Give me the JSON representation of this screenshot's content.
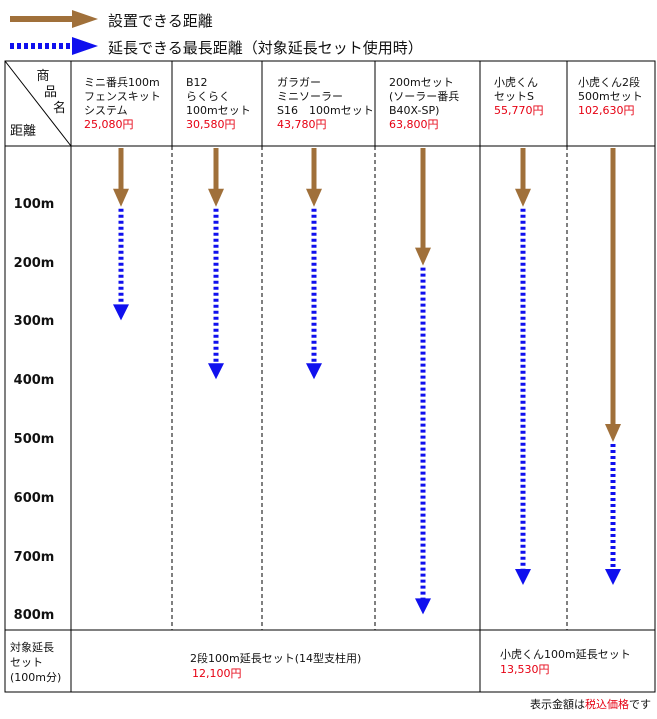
{
  "legend": {
    "install": {
      "label": "設置できる距離",
      "color": "#a0703a"
    },
    "extend": {
      "label": "延長できる最長距離（対象延長セット使用時）",
      "color": "#1010ee"
    }
  },
  "header": {
    "corner_top": [
      "商",
      "品",
      "名"
    ],
    "corner_bottom": "距離"
  },
  "chart_data": {
    "type": "bar",
    "y_unit": "m",
    "ylim": [
      0,
      800
    ],
    "yticks": [
      "100m",
      "200m",
      "300m",
      "400m",
      "500m",
      "600m",
      "700m",
      "800m"
    ],
    "categories": [
      {
        "name": [
          "ミニ番兵100m",
          "フェンスキット",
          "システム"
        ],
        "price": "25,080円"
      },
      {
        "name": [
          "B12",
          "らくらく",
          "100mセット"
        ],
        "price": "30,580円"
      },
      {
        "name": [
          "ガラガー",
          "ミニソーラー",
          "S16　100mセット"
        ],
        "price": "43,780円"
      },
      {
        "name": [
          "200mセット",
          "(ソーラー番兵",
          "B40X-SP)"
        ],
        "price": "63,800円"
      },
      {
        "name": [
          "小虎くん",
          "セットS"
        ],
        "price": "55,770円"
      },
      {
        "name": [
          "小虎くん2段",
          "500mセット"
        ],
        "price": "102,630円"
      }
    ],
    "series": [
      {
        "name": "設置できる距離",
        "values": [
          100,
          100,
          100,
          200,
          100,
          500
        ]
      },
      {
        "name": "延長できる最長距離",
        "values": [
          300,
          400,
          400,
          800,
          750,
          750
        ]
      }
    ]
  },
  "extension": {
    "row_label": [
      "対象延長",
      "セット",
      "(100m分)"
    ],
    "left": {
      "title": "2段100m延長セット(14型支柱用)",
      "price": "12,100円"
    },
    "right": {
      "title": "小虎くん100m延長セット",
      "price": "13,530円"
    }
  },
  "footnote": {
    "prefix": "表示金額は",
    "highlight": "税込価格",
    "suffix": "です"
  }
}
